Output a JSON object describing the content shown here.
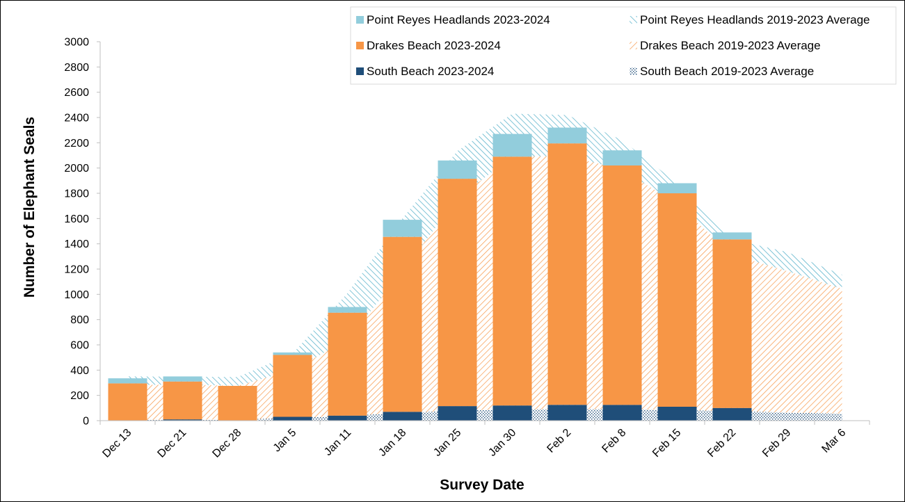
{
  "chart_data": {
    "type": "bar",
    "xlabel": "Survey Date",
    "ylabel": "Number of Elephant Seals",
    "ylim": [
      0,
      3000
    ],
    "yticks": [
      0,
      200,
      400,
      600,
      800,
      1000,
      1200,
      1400,
      1600,
      1800,
      2000,
      2200,
      2400,
      2600,
      2800,
      3000
    ],
    "categories": [
      "Dec 13",
      "Dec 21",
      "Dec 28",
      "Jan 5",
      "Jan 11",
      "Jan 18",
      "Jan 25",
      "Jan 30",
      "Feb 2",
      "Feb 8",
      "Feb 15",
      "Feb 22",
      "Feb 29",
      "Mar 6"
    ],
    "stacked_bars": [
      {
        "name": "South Beach 2023-2024",
        "color": "#1f4e79",
        "values": [
          0,
          10,
          0,
          30,
          40,
          70,
          115,
          120,
          125,
          125,
          110,
          100,
          null,
          null
        ]
      },
      {
        "name": "Drakes Beach 2023-2024",
        "color": "#f79646",
        "values": [
          295,
          300,
          275,
          490,
          815,
          1385,
          1800,
          1970,
          2070,
          1895,
          1690,
          1335,
          null,
          null
        ]
      },
      {
        "name": "Point Reyes Headlands 2023-2024",
        "color": "#92cddc",
        "values": [
          40,
          40,
          0,
          20,
          45,
          135,
          145,
          180,
          125,
          120,
          80,
          55,
          null,
          null
        ]
      }
    ],
    "stacked_areas": [
      {
        "name": "South Beach 2019-2023 Average",
        "color": "#1f4e79",
        "pattern": "dots",
        "values": [
          5,
          8,
          10,
          20,
          40,
          60,
          80,
          90,
          90,
          90,
          85,
          75,
          65,
          55
        ]
      },
      {
        "name": "Drakes Beach 2019-2023 Average",
        "color": "#f79646",
        "pattern": "hatch",
        "values": [
          275,
          280,
          265,
          380,
          600,
          1120,
          1680,
          2000,
          2005,
          1900,
          1630,
          1240,
          1120,
          990
        ]
      },
      {
        "name": "Point Reyes Headlands 2019-2023 Average",
        "color": "#4bacc6",
        "pattern": "hatch-reverse",
        "values": [
          70,
          60,
          70,
          130,
          370,
          420,
          375,
          340,
          325,
          230,
          165,
          120,
          150,
          110
        ]
      }
    ],
    "legend": {
      "placement": "top-right",
      "items": [
        "Point Reyes Headlands 2023-2024",
        "Point Reyes Headlands 2019-2023 Average",
        "Drakes Beach 2023-2024",
        "Drakes Beach 2019-2023 Average",
        "South Beach 2023-2024",
        "South Beach 2019-2023 Average"
      ]
    }
  }
}
